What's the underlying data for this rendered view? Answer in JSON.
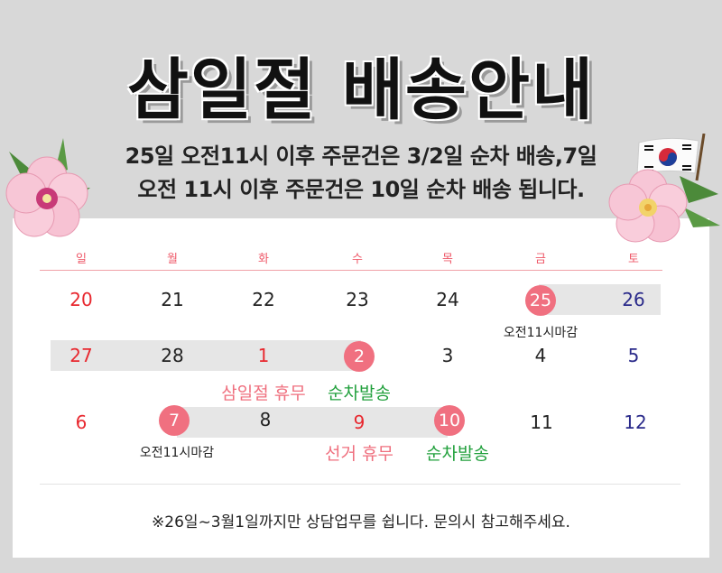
{
  "header": {
    "title": "삼일절 배송안내",
    "subtitle_line1": "25일 오전11시 이후 주문건은 3/2일 순차 배송,7일",
    "subtitle_line2": "오전 11시 이후 주문건은 10일 순차 배송 됩니다."
  },
  "calendar": {
    "day_names": [
      "일",
      "월",
      "화",
      "수",
      "목",
      "금",
      "토"
    ],
    "weeks": [
      [
        "20",
        "21",
        "22",
        "23",
        "24",
        "25",
        "26"
      ],
      [
        "27",
        "28",
        "1",
        "2",
        "3",
        "4",
        "5"
      ],
      [
        "6",
        "7",
        "8",
        "9",
        "10",
        "11",
        "12"
      ]
    ],
    "notes": {
      "deadline_1": "오전11시마감",
      "holiday_1": "삼일절 휴무",
      "ship_1": "순차발송",
      "deadline_2": "오전11시마감",
      "holiday_2": "선거 휴무",
      "ship_2": "순차발송"
    }
  },
  "footer": {
    "text": "※26일~3월1일까지만 상담업무를 쉽니다. 문의시 참고해주세요."
  },
  "decorations": {
    "left_flower": "hibiscus-flower-icon",
    "right_flower": "hibiscus-flower-icon",
    "flag": "korean-flag-icon"
  },
  "colors": {
    "accent_pink": "#f07080",
    "sunday_red": "#e8282f",
    "saturday_navy": "#2a2a8a",
    "ship_green": "#21a03c"
  }
}
